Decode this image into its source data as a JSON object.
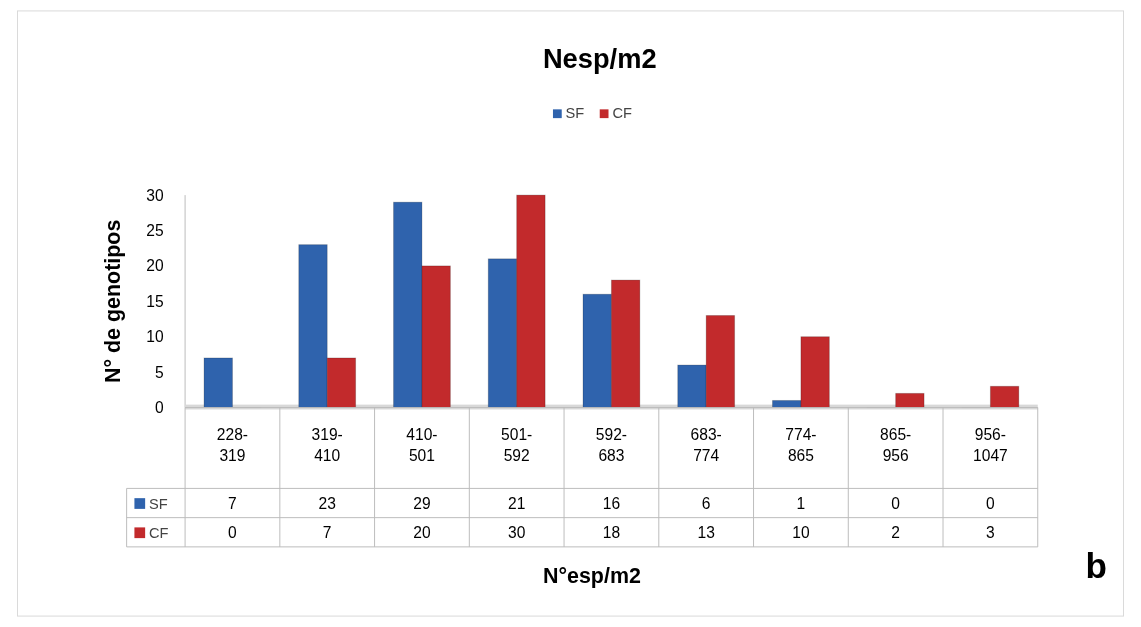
{
  "chart_data": {
    "type": "bar",
    "title": "Nesp/m2",
    "xlabel": "N°esp/m2",
    "ylabel": "N° de genotipos",
    "categories": [
      "228-319",
      "319-410",
      "410-501",
      "501-592",
      "592-683",
      "683-774",
      "774-865",
      "865-956",
      "956-1047"
    ],
    "series": [
      {
        "name": "SF",
        "color": "#2f63ad",
        "values": [
          7,
          23,
          29,
          21,
          16,
          6,
          1,
          0,
          0
        ]
      },
      {
        "name": "CF",
        "color": "#c22a2c",
        "values": [
          0,
          7,
          20,
          30,
          18,
          13,
          10,
          2,
          3
        ]
      }
    ],
    "ylim": [
      0,
      30
    ],
    "yticks": [
      0,
      5,
      10,
      15,
      20,
      25,
      30
    ],
    "grid": false,
    "legend": "top",
    "data_labels": true,
    "annotations": [
      "b"
    ]
  }
}
